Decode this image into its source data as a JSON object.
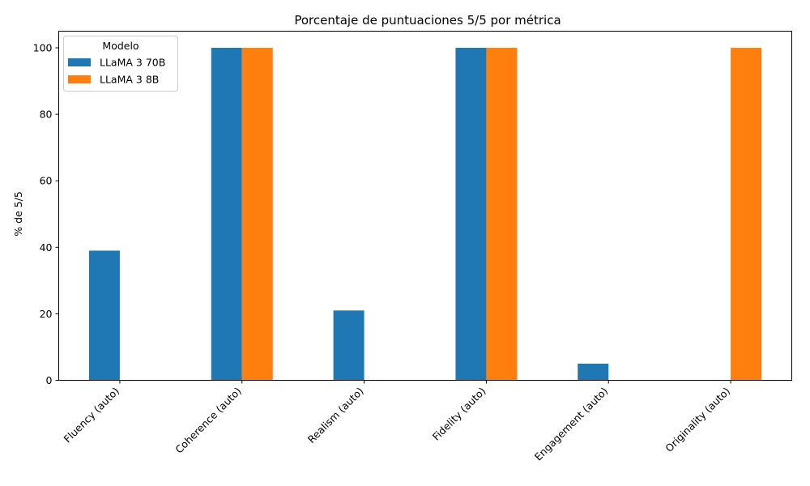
{
  "chart_data": {
    "type": "bar",
    "title": "Porcentaje de puntuaciones 5/5 por métrica",
    "xlabel": "",
    "ylabel": "% de 5/5",
    "ylim": [
      0,
      105
    ],
    "yticks": [
      0,
      20,
      40,
      60,
      80,
      100
    ],
    "categories": [
      "Fluency (auto)",
      "Coherence (auto)",
      "Realism (auto)",
      "Fidelity (auto)",
      "Engagement (auto)",
      "Originality (auto)"
    ],
    "series": [
      {
        "name": "LLaMA 3 70B",
        "color": "#1f77b4",
        "values": [
          39,
          100,
          21,
          100,
          5,
          0
        ]
      },
      {
        "name": "LLaMA 3 8B",
        "color": "#ff7f0e",
        "values": [
          0,
          100,
          0,
          100,
          0,
          100
        ]
      }
    ],
    "legend": {
      "title": "Modelo",
      "placement": "top-left"
    },
    "grid": false
  }
}
